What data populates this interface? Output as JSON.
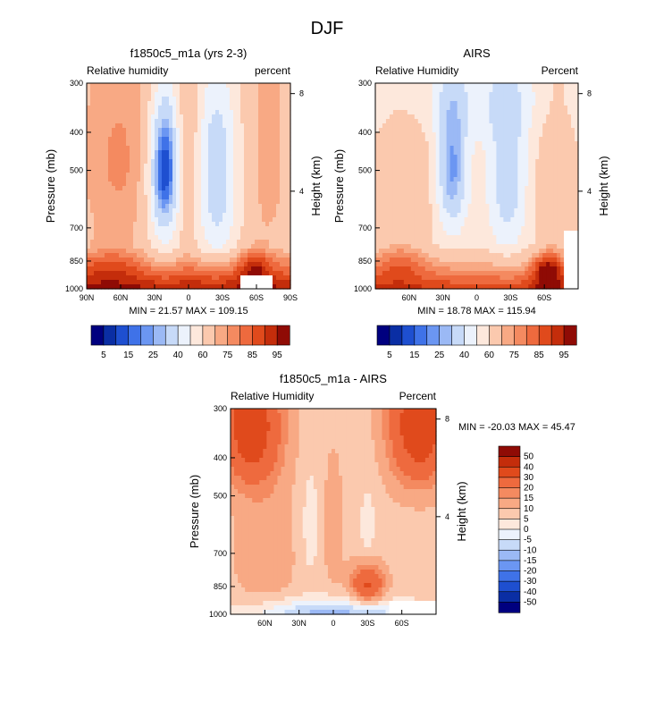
{
  "figure_title": "DJF",
  "colors": {
    "rh_palette": [
      "#00007f",
      "#0a2ea4",
      "#1e4fd0",
      "#3f72e8",
      "#6b96f2",
      "#9bb9f5",
      "#c7daf8",
      "#ecf2fc",
      "#fde8dc",
      "#fbc9ae",
      "#f8a984",
      "#f48a60",
      "#ee6a3e",
      "#e04a1c",
      "#c42d0b",
      "#8f0b05"
    ],
    "diff_palette": [
      "#00007f",
      "#0a2ea4",
      "#1e4fd0",
      "#3f72e8",
      "#6b96f2",
      "#9bb9f5",
      "#c7daf8",
      "#ecf2fc",
      "#fde8dc",
      "#fbc9ae",
      "#f8a984",
      "#f48a60",
      "#ee6a3e",
      "#e04a1c",
      "#c42d0b",
      "#8f0b05"
    ]
  },
  "chart_data": [
    {
      "type": "heatmap",
      "title": "f1850c5_m1a (yrs 2-3)",
      "left_label": "Relative humidity",
      "right_label": "percent",
      "ylabel": "Pressure (mb)",
      "ylabel_right": "Height (km)",
      "x_ticks": [
        "90N",
        "60N",
        "30N",
        "0",
        "30S",
        "60S",
        "90S"
      ],
      "x_tick_values": [
        90,
        60,
        30,
        0,
        -30,
        -60,
        -90
      ],
      "xlim": [
        90,
        -90
      ],
      "y_ticks": [
        "300",
        "400",
        "500",
        "700",
        "850",
        "1000"
      ],
      "y_tick_values": [
        300,
        400,
        500,
        700,
        850,
        1000
      ],
      "ylim": [
        300,
        1000
      ],
      "height_ticks": [
        "8",
        "4"
      ],
      "height_tick_values": [
        8,
        4
      ],
      "summary": "MIN =  21.57  MAX = 109.15",
      "min": 21.57,
      "max": 109.15,
      "field": {
        "base": 66,
        "surface_gradient": {
          "value": 30,
          "from_p": 780,
          "to_p": 1000
        },
        "features": [
          {
            "lat": 21,
            "p": 470,
            "amp": -44,
            "sx": 9,
            "sp": 130
          },
          {
            "lat": 22,
            "p": 620,
            "amp": -20,
            "sx": 10,
            "sp": 160
          },
          {
            "lat": -25,
            "p": 470,
            "amp": -33,
            "sx": 13,
            "sp": 170
          },
          {
            "lat": -25,
            "p": 720,
            "amp": -12,
            "sx": 14,
            "sp": 110
          },
          {
            "lat": 62,
            "p": 470,
            "amp": 10,
            "sx": 22,
            "sp": 200
          },
          {
            "lat": 0,
            "p": 420,
            "amp": 8,
            "sx": 7,
            "sp": 230
          },
          {
            "lat": -70,
            "p": 450,
            "amp": 8,
            "sx": 10,
            "sp": 200
          },
          {
            "lat": -58,
            "p": 880,
            "amp": 16,
            "sx": 10,
            "sp": 70
          },
          {
            "lat": 70,
            "p": 870,
            "amp": 8,
            "sx": 18,
            "sp": 80
          }
        ],
        "masks": [
          {
            "lat_from": -45,
            "lat_to": -75,
            "p_from": 920,
            "p_to": 1000
          }
        ]
      }
    },
    {
      "type": "heatmap",
      "title": "AIRS",
      "left_label": "Relative Humidity",
      "right_label": "Percent",
      "ylabel": "Pressure (mb)",
      "ylabel_right": "Height (km)",
      "x_ticks": [
        "60N",
        "30N",
        "0",
        "30S",
        "60S"
      ],
      "x_tick_values": [
        60,
        30,
        0,
        -30,
        -60
      ],
      "xlim": [
        90,
        -90
      ],
      "y_ticks": [
        "300",
        "400",
        "500",
        "700",
        "850",
        "1000"
      ],
      "y_tick_values": [
        300,
        400,
        500,
        700,
        850,
        1000
      ],
      "ylim": [
        300,
        1000
      ],
      "height_ticks": [
        "8",
        "4"
      ],
      "height_tick_values": [
        8,
        4
      ],
      "summary": "MIN =  18.78  MAX = 115.94",
      "min": 18.78,
      "max": 115.94,
      "field": {
        "base": 58,
        "surface_gradient": {
          "value": 32,
          "from_p": 760,
          "to_p": 1000
        },
        "features": [
          {
            "lat": 22,
            "p": 500,
            "amp": -36,
            "sx": 10,
            "sp": 140
          },
          {
            "lat": -27,
            "p": 520,
            "amp": -26,
            "sx": 12,
            "sp": 180
          },
          {
            "lat": 0,
            "p": 330,
            "amp": -12,
            "sx": 60,
            "sp": 60
          },
          {
            "lat": 62,
            "p": 520,
            "amp": 12,
            "sx": 20,
            "sp": 200
          },
          {
            "lat": -70,
            "p": 500,
            "amp": 12,
            "sx": 12,
            "sp": 220
          },
          {
            "lat": -63,
            "p": 900,
            "amp": 24,
            "sx": 9,
            "sp": 70
          },
          {
            "lat": 70,
            "p": 860,
            "amp": 10,
            "sx": 16,
            "sp": 80
          }
        ],
        "masks": [
          {
            "lat_from": -77,
            "lat_to": -90,
            "p_from": 720,
            "p_to": 1000
          }
        ]
      }
    },
    {
      "type": "heatmap",
      "title": "f1850c5_m1a - AIRS",
      "left_label": "Relative Humidity",
      "right_label": "Percent",
      "ylabel": "Pressure (mb)",
      "ylabel_right": "Height (km)",
      "x_ticks": [
        "60N",
        "30N",
        "0",
        "30S",
        "60S"
      ],
      "x_tick_values": [
        60,
        30,
        0,
        -30,
        -60
      ],
      "xlim": [
        90,
        -90
      ],
      "y_ticks": [
        "300",
        "400",
        "500",
        "700",
        "850",
        "1000"
      ],
      "y_tick_values": [
        300,
        400,
        500,
        700,
        850,
        1000
      ],
      "ylim": [
        300,
        1000
      ],
      "height_ticks": [
        "8",
        "4"
      ],
      "height_tick_values": [
        8,
        4
      ],
      "summary": "MIN = -20.03   MAX =  45.47",
      "min": -20.03,
      "max": 45.47,
      "field": {
        "base": 8,
        "surface_gradient": {
          "value": 0,
          "from_p": 900,
          "to_p": 1000
        },
        "features": [
          {
            "lat": 72,
            "p": 330,
            "amp": 30,
            "sx": 18,
            "sp": 90
          },
          {
            "lat": -75,
            "p": 330,
            "amp": 32,
            "sx": 18,
            "sp": 90
          },
          {
            "lat": -30,
            "p": 840,
            "amp": 24,
            "sx": 10,
            "sp": 70
          },
          {
            "lat": 0,
            "p": 600,
            "amp": 6,
            "sx": 6,
            "sp": 150
          },
          {
            "lat": 0,
            "p": 1000,
            "amp": -20,
            "sx": 55,
            "sp": 60
          },
          {
            "lat": 20,
            "p": 600,
            "amp": -6,
            "sx": 6,
            "sp": 150
          },
          {
            "lat": -30,
            "p": 600,
            "amp": -5,
            "sx": 6,
            "sp": 120
          },
          {
            "lat": 60,
            "p": 700,
            "amp": 6,
            "sx": 18,
            "sp": 200
          }
        ],
        "masks": [
          {
            "lat_from": -50,
            "lat_to": -90,
            "p_from": 930,
            "p_to": 1000
          }
        ]
      }
    }
  ],
  "colorbars": [
    {
      "orientation": "horizontal",
      "labels": [
        "5",
        "15",
        "25",
        "40",
        "60",
        "75",
        "85",
        "95"
      ]
    },
    {
      "orientation": "horizontal",
      "labels": [
        "5",
        "15",
        "25",
        "40",
        "60",
        "75",
        "85",
        "95"
      ]
    },
    {
      "orientation": "vertical",
      "labels": [
        "50",
        "40",
        "30",
        "20",
        "15",
        "10",
        "5",
        "0",
        "-5",
        "-10",
        "-15",
        "-20",
        "-30",
        "-40",
        "-50"
      ]
    }
  ]
}
